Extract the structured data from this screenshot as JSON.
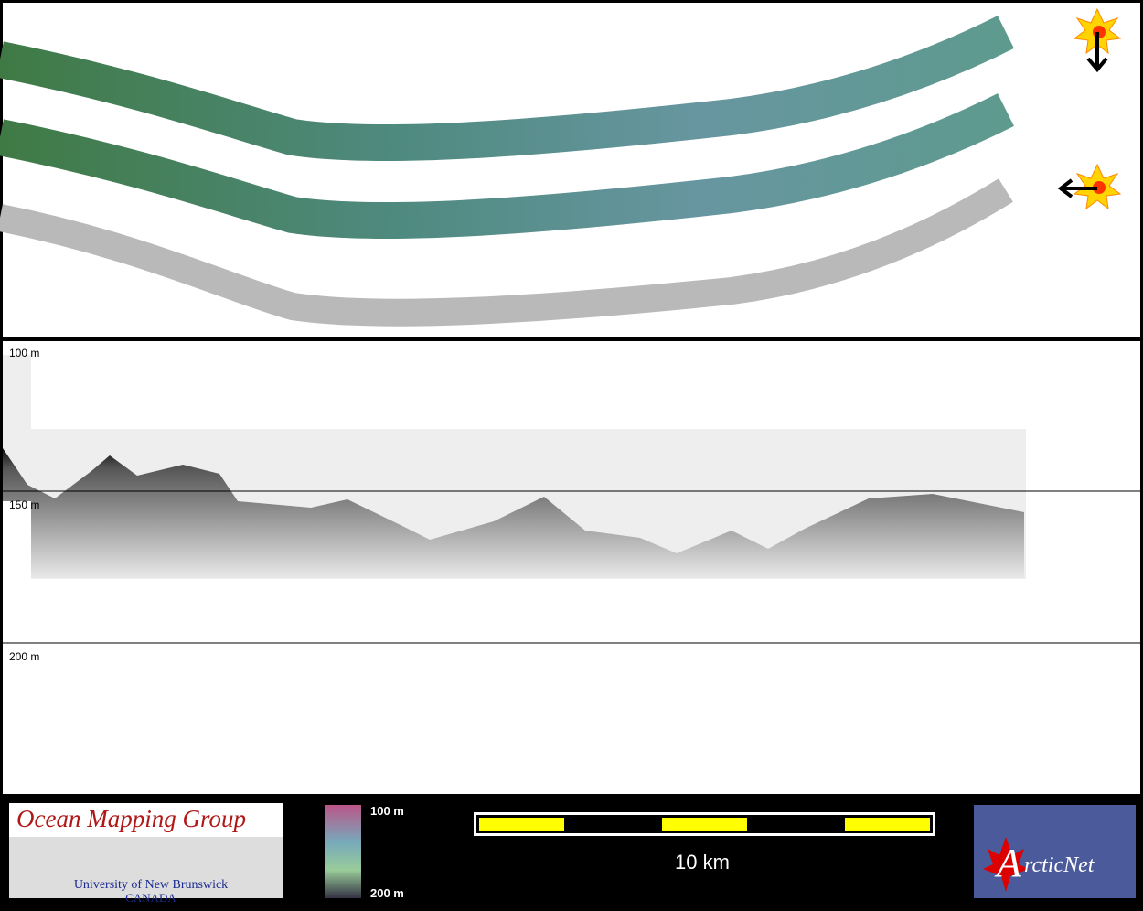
{
  "profile": {
    "depth_labels": [
      "100 m",
      "150 m",
      "200 m"
    ]
  },
  "footer": {
    "logo": {
      "title": "Ocean Mapping Group",
      "subtitle": "University of New Brunswick",
      "country": "CANADA"
    },
    "color_scale": {
      "top": "100 m",
      "bottom": "200 m"
    },
    "scale_bar": "10 km",
    "partner": {
      "initial": "A",
      "rest": "rcticNet"
    }
  }
}
